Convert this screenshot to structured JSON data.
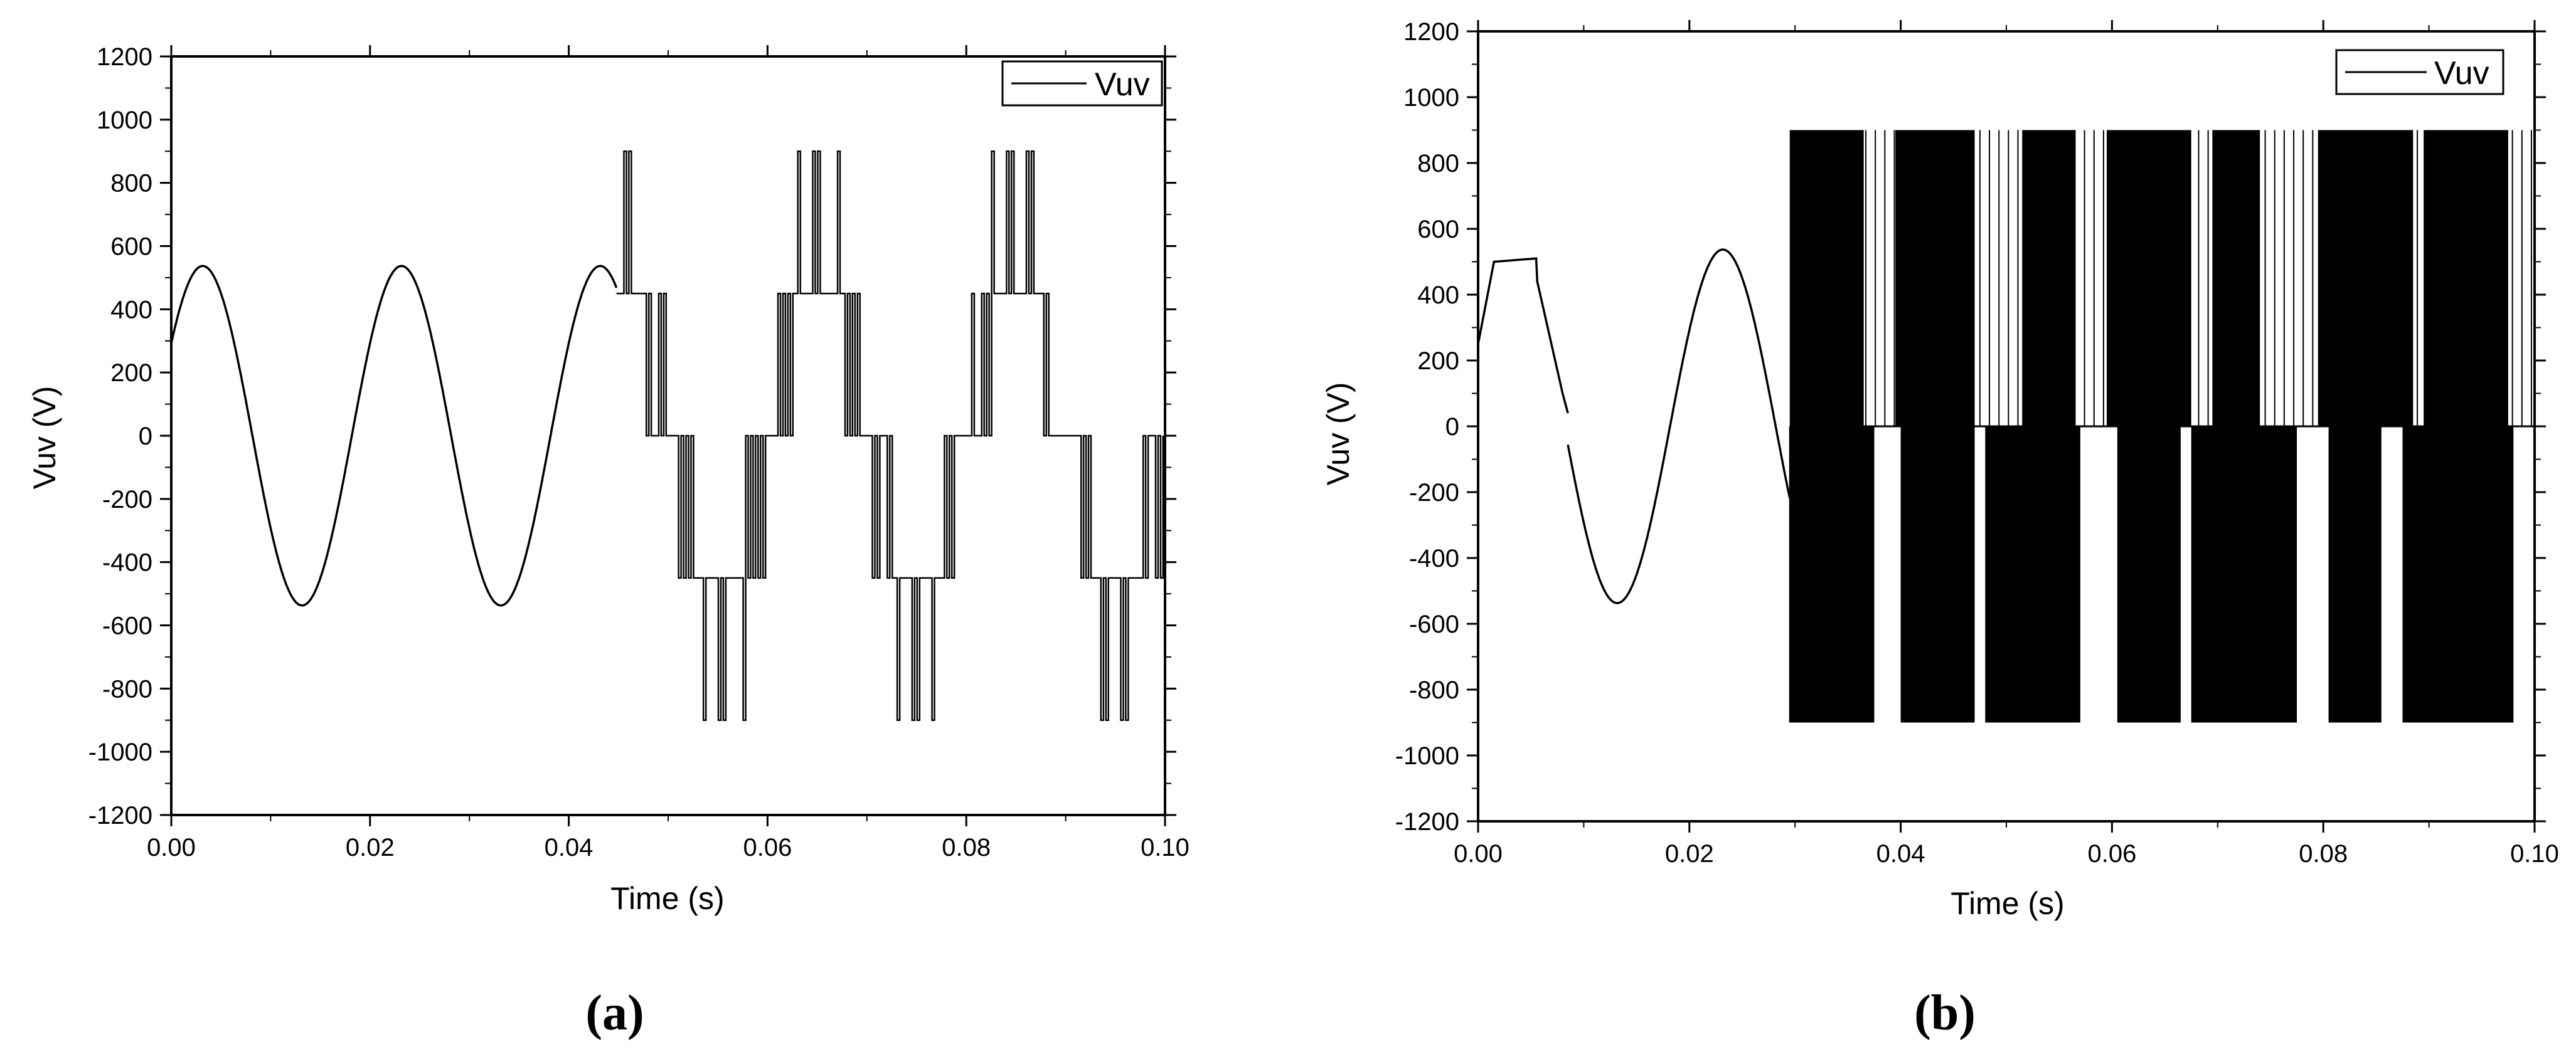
{
  "figure": {
    "panel_labels": [
      "(a)",
      "(b)"
    ]
  },
  "chart_data": [
    {
      "type": "line",
      "xlabel": "Time (s)",
      "ylabel": "Vuv (V)",
      "xlim": [
        0,
        0.1
      ],
      "ylim": [
        -1200,
        1200
      ],
      "xticks": [
        0.0,
        0.02,
        0.04,
        0.06,
        0.08,
        0.1
      ],
      "xtick_labels": [
        "0.00",
        "0.02",
        "0.04",
        "0.06",
        "0.08",
        "0.10"
      ],
      "yticks": [
        -1200,
        -1000,
        -800,
        -600,
        -400,
        -200,
        0,
        200,
        400,
        600,
        800,
        1000,
        1200
      ],
      "legend": {
        "entries": [
          "Vuv"
        ],
        "placement": "top-right"
      },
      "series": [
        {
          "name": "Vuv",
          "segments": [
            {
              "kind": "sine",
              "t_start": 0.0,
              "t_end": 0.0448,
              "amplitude": 537,
              "frequency_hz": 50,
              "phase_deg": 33
            },
            {
              "kind": "multilevel_pwm",
              "t_start": 0.0448,
              "t_end": 0.1,
              "levels": [
                -900,
                -450,
                0,
                450,
                900
              ],
              "fundamental_amplitude": 650,
              "frequency_hz": 50,
              "phase_deg": 0
            }
          ]
        }
      ]
    },
    {
      "type": "line",
      "xlabel": "Time (s)",
      "ylabel": "Vuv (V)",
      "xlim": [
        0,
        0.1
      ],
      "ylim": [
        -1200,
        1200
      ],
      "xticks": [
        0.0,
        0.02,
        0.04,
        0.06,
        0.08,
        0.1
      ],
      "xtick_labels": [
        "0.00",
        "0.02",
        "0.04",
        "0.06",
        "0.08",
        "0.10"
      ],
      "yticks": [
        -1200,
        -1000,
        -800,
        -600,
        -400,
        -200,
        0,
        200,
        400,
        600,
        800,
        1000,
        1200
      ],
      "legend": {
        "entries": [
          "Vuv"
        ],
        "placement": "top-right"
      },
      "series": [
        {
          "name": "Vuv",
          "segments": [
            {
              "kind": "points",
              "points": [
                [
                  0.0,
                  250
                ],
                [
                  0.0015,
                  500
                ],
                [
                  0.0055,
                  510
                ],
                [
                  0.0056,
                  440
                ],
                [
                  0.008,
                  100
                ],
                [
                  0.0085,
                  40
                ]
              ]
            },
            {
              "kind": "sine",
              "t_start": 0.0085,
              "t_end": 0.0295,
              "amplitude": 537,
              "frequency_hz": 50,
              "phase_deg": 33
            },
            {
              "kind": "two_level_pwm",
              "t_start": 0.0295,
              "t_end": 0.1,
              "high": 900,
              "low": -900,
              "zero": 0,
              "positive_bands": [
                [
                  0.0295,
                  0.0365
                ],
                [
                  0.0395,
                  0.047
                ],
                [
                  0.0515,
                  0.0565
                ],
                [
                  0.0595,
                  0.0675
                ],
                [
                  0.0695,
                  0.074
                ],
                [
                  0.0795,
                  0.0885
                ],
                [
                  0.0895,
                  0.0975
                ]
              ],
              "negative_bands": [
                [
                  0.0295,
                  0.0375
                ],
                [
                  0.04,
                  0.047
                ],
                [
                  0.048,
                  0.057
                ],
                [
                  0.0605,
                  0.0665
                ],
                [
                  0.0675,
                  0.0775
                ],
                [
                  0.0805,
                  0.0855
                ],
                [
                  0.0875,
                  0.098
                ]
              ]
            }
          ]
        }
      ]
    }
  ]
}
